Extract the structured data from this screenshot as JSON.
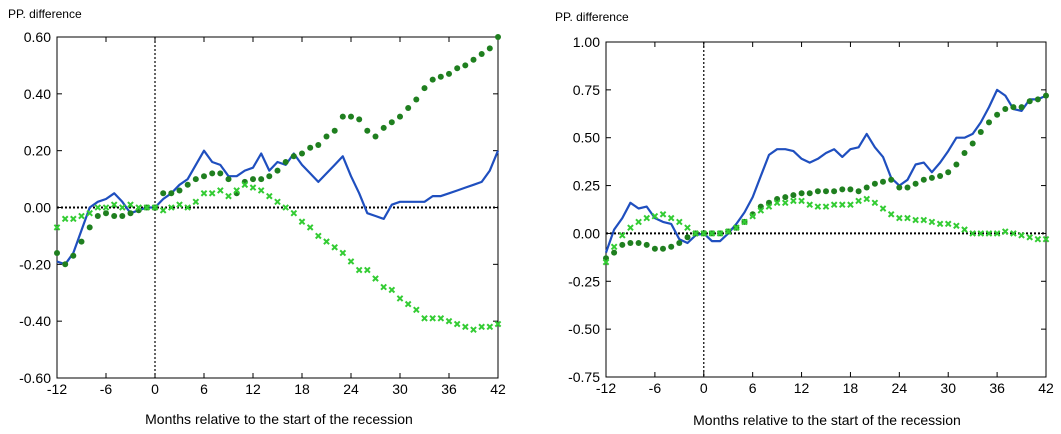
{
  "colors": {
    "blue": "#1f4fbf",
    "dark_green": "#1f7f1f",
    "light_green": "#33cc33",
    "axis": "#000000"
  },
  "chart_data": [
    {
      "type": "line",
      "title": "",
      "ylabel": "PP. difference",
      "xlabel": "Months relative to the start of the recession",
      "xlim": [
        -12,
        42
      ],
      "ylim": [
        -0.6,
        0.6
      ],
      "xticks": [
        -12,
        -6,
        0,
        6,
        12,
        18,
        24,
        30,
        36,
        42
      ],
      "yticks": [
        -0.6,
        -0.4,
        -0.2,
        0.0,
        0.2,
        0.4,
        0.6
      ],
      "ytick_labels": [
        "-0.60",
        "-0.40",
        "-0.20",
        "0.00",
        "0.20",
        "0.40",
        "0.60"
      ],
      "reference_lines": {
        "horizontal_y": 0,
        "vertical_x": 0
      },
      "x": [
        -12,
        -11,
        -10,
        -9,
        -8,
        -7,
        -6,
        -5,
        -4,
        -3,
        -2,
        -1,
        0,
        1,
        2,
        3,
        4,
        5,
        6,
        7,
        8,
        9,
        10,
        11,
        12,
        13,
        14,
        15,
        16,
        17,
        18,
        19,
        20,
        21,
        22,
        23,
        24,
        25,
        26,
        27,
        28,
        29,
        30,
        31,
        32,
        33,
        34,
        35,
        36,
        37,
        38,
        39,
        40,
        41,
        42
      ],
      "series": [
        {
          "style": "line",
          "color": "#1f4fbf",
          "values": [
            -0.19,
            -0.2,
            -0.16,
            -0.08,
            0.0,
            0.02,
            0.03,
            0.05,
            0.02,
            -0.02,
            -0.01,
            0.0,
            0.0,
            0.03,
            0.05,
            0.08,
            0.1,
            0.15,
            0.2,
            0.16,
            0.15,
            0.11,
            0.11,
            0.13,
            0.14,
            0.19,
            0.13,
            0.16,
            0.15,
            0.19,
            0.15,
            0.12,
            0.09,
            0.12,
            0.15,
            0.18,
            0.11,
            0.05,
            -0.02,
            -0.03,
            -0.04,
            0.01,
            0.02,
            0.02,
            0.02,
            0.02,
            0.04,
            0.04,
            0.05,
            0.06,
            0.07,
            0.08,
            0.09,
            0.13,
            0.2
          ]
        },
        {
          "style": "dots",
          "color": "#1f7f1f",
          "values": [
            -0.16,
            -0.2,
            -0.17,
            -0.12,
            -0.07,
            -0.03,
            -0.02,
            -0.03,
            -0.03,
            -0.02,
            -0.01,
            0.0,
            0.0,
            0.05,
            0.05,
            0.06,
            0.08,
            0.1,
            0.11,
            0.12,
            0.12,
            0.1,
            0.05,
            0.09,
            0.1,
            0.1,
            0.11,
            0.13,
            0.16,
            0.18,
            0.19,
            0.21,
            0.22,
            0.25,
            0.27,
            0.32,
            0.32,
            0.31,
            0.27,
            0.25,
            0.28,
            0.3,
            0.32,
            0.35,
            0.38,
            0.42,
            0.45,
            0.46,
            0.47,
            0.49,
            0.5,
            0.52,
            0.54,
            0.56,
            0.6
          ]
        },
        {
          "style": "crosses",
          "color": "#33cc33",
          "values": [
            -0.07,
            -0.04,
            -0.04,
            -0.03,
            -0.02,
            0.0,
            0.0,
            0.01,
            0.0,
            0.01,
            0.0,
            0.0,
            0.0,
            -0.01,
            0.0,
            0.01,
            0.0,
            0.02,
            0.05,
            0.05,
            0.06,
            0.04,
            0.06,
            0.08,
            0.07,
            0.06,
            0.04,
            0.02,
            0.0,
            -0.02,
            -0.05,
            -0.07,
            -0.1,
            -0.12,
            -0.14,
            -0.16,
            -0.19,
            -0.22,
            -0.22,
            -0.25,
            -0.28,
            -0.29,
            -0.32,
            -0.34,
            -0.36,
            -0.39,
            -0.39,
            -0.39,
            -0.4,
            -0.41,
            -0.42,
            -0.43,
            -0.42,
            -0.42,
            -0.41
          ]
        }
      ]
    },
    {
      "type": "line",
      "title": "",
      "ylabel": "PP. difference",
      "xlabel": "Months relative to the start of the recession",
      "xlim": [
        -12,
        42
      ],
      "ylim": [
        -0.75,
        1.0
      ],
      "xticks": [
        -12,
        -6,
        0,
        6,
        12,
        18,
        24,
        30,
        36,
        42
      ],
      "yticks": [
        -0.75,
        -0.5,
        -0.25,
        0.0,
        0.25,
        0.5,
        0.75,
        1.0
      ],
      "ytick_labels": [
        "-0.75",
        "-0.50",
        "-0.25",
        "0.00",
        "0.25",
        "0.50",
        "0.75",
        "1.00"
      ],
      "reference_lines": {
        "horizontal_y": 0,
        "vertical_x": 0
      },
      "x": [
        -12,
        -11,
        -10,
        -9,
        -8,
        -7,
        -6,
        -5,
        -4,
        -3,
        -2,
        -1,
        0,
        1,
        2,
        3,
        4,
        5,
        6,
        7,
        8,
        9,
        10,
        11,
        12,
        13,
        14,
        15,
        16,
        17,
        18,
        19,
        20,
        21,
        22,
        23,
        24,
        25,
        26,
        27,
        28,
        29,
        30,
        31,
        32,
        33,
        34,
        35,
        36,
        37,
        38,
        39,
        40,
        41,
        42
      ],
      "series": [
        {
          "style": "line",
          "color": "#1f4fbf",
          "values": [
            -0.1,
            0.02,
            0.08,
            0.16,
            0.13,
            0.14,
            0.08,
            0.06,
            0.05,
            -0.03,
            -0.05,
            -0.01,
            0.0,
            -0.04,
            -0.04,
            0.0,
            0.05,
            0.11,
            0.19,
            0.3,
            0.41,
            0.44,
            0.44,
            0.43,
            0.39,
            0.37,
            0.39,
            0.42,
            0.44,
            0.4,
            0.44,
            0.45,
            0.52,
            0.45,
            0.4,
            0.29,
            0.25,
            0.28,
            0.36,
            0.37,
            0.32,
            0.37,
            0.43,
            0.5,
            0.5,
            0.52,
            0.58,
            0.66,
            0.75,
            0.72,
            0.65,
            0.64,
            0.7,
            0.7,
            0.72
          ]
        },
        {
          "style": "dots",
          "color": "#1f7f1f",
          "values": [
            -0.13,
            -0.1,
            -0.06,
            -0.05,
            -0.05,
            -0.06,
            -0.08,
            -0.08,
            -0.07,
            -0.05,
            -0.02,
            0.0,
            0.0,
            0.0,
            0.0,
            0.01,
            0.03,
            0.06,
            0.1,
            0.14,
            0.16,
            0.18,
            0.19,
            0.2,
            0.21,
            0.21,
            0.22,
            0.22,
            0.22,
            0.23,
            0.23,
            0.22,
            0.24,
            0.26,
            0.27,
            0.28,
            0.24,
            0.24,
            0.26,
            0.28,
            0.29,
            0.3,
            0.32,
            0.36,
            0.42,
            0.47,
            0.53,
            0.58,
            0.62,
            0.65,
            0.66,
            0.66,
            0.69,
            0.7,
            0.72
          ]
        },
        {
          "style": "crosses",
          "color": "#33cc33",
          "values": [
            -0.15,
            -0.07,
            -0.01,
            0.03,
            0.06,
            0.08,
            0.09,
            0.1,
            0.08,
            0.06,
            0.03,
            0.0,
            0.0,
            0.0,
            0.0,
            0.01,
            0.03,
            0.06,
            0.09,
            0.12,
            0.14,
            0.16,
            0.16,
            0.17,
            0.17,
            0.15,
            0.14,
            0.14,
            0.15,
            0.15,
            0.15,
            0.17,
            0.18,
            0.16,
            0.13,
            0.1,
            0.08,
            0.08,
            0.07,
            0.07,
            0.06,
            0.05,
            0.05,
            0.04,
            0.02,
            0.0,
            0.0,
            0.0,
            0.0,
            0.01,
            0.0,
            -0.01,
            -0.02,
            -0.03,
            -0.03
          ]
        }
      ]
    }
  ]
}
